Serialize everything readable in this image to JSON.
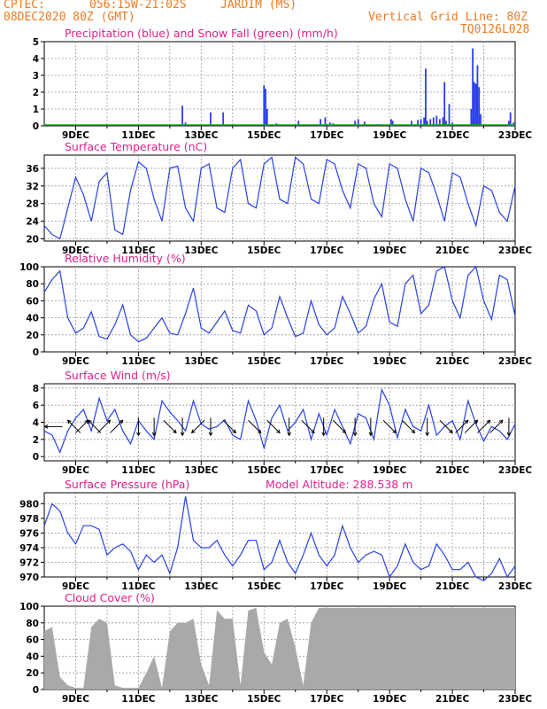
{
  "header": {
    "org": "CPTEC:",
    "coords": "056:15W-21:02S",
    "location": "JARDIM (MS)",
    "date": "08DEC2020 80Z (GMT)",
    "grid_note": "Vertical Grid Line: 80Z",
    "code": "TQ0126L028"
  },
  "colors": {
    "header": "#ee7a22",
    "title": "#e0208c",
    "line": "#2840e8",
    "snow": "#18a018",
    "cloud": "#a9a9a9",
    "grid": "#9a9a9a"
  },
  "x_axis": {
    "labels": [
      "9DEC",
      "11DEC",
      "13DEC",
      "15DEC",
      "17DEC",
      "19DEC",
      "21DEC",
      "23DEC"
    ]
  },
  "chart_data": [
    {
      "type": "bar",
      "title": "Precipitation (blue) and Snow Fall (green) (mm/h)",
      "ylim": [
        0,
        5
      ],
      "yticks": [
        0,
        1,
        2,
        3,
        4,
        5
      ],
      "series": [
        {
          "name": "Precipitation",
          "color": "blue",
          "points": [
            [
              12.4,
              1.2
            ],
            [
              12.5,
              0.2
            ],
            [
              13.3,
              0.8
            ],
            [
              13.7,
              0.8
            ],
            [
              15.0,
              2.4
            ],
            [
              15.05,
              2.2
            ],
            [
              15.1,
              1.0
            ],
            [
              15.4,
              0.15
            ],
            [
              16.1,
              0.3
            ],
            [
              16.8,
              0.4
            ],
            [
              16.95,
              0.5
            ],
            [
              17.1,
              0.2
            ],
            [
              17.2,
              0.15
            ],
            [
              17.9,
              0.3
            ],
            [
              18.0,
              0.4
            ],
            [
              18.2,
              0.25
            ],
            [
              18.6,
              0.1
            ],
            [
              19.05,
              0.4
            ],
            [
              19.1,
              0.3
            ],
            [
              19.7,
              0.3
            ],
            [
              19.9,
              0.35
            ],
            [
              20.0,
              0.4
            ],
            [
              20.1,
              0.5
            ],
            [
              20.15,
              3.4
            ],
            [
              20.2,
              0.3
            ],
            [
              20.3,
              0.4
            ],
            [
              20.4,
              0.5
            ],
            [
              20.5,
              0.6
            ],
            [
              20.6,
              0.4
            ],
            [
              20.7,
              0.5
            ],
            [
              20.75,
              2.6
            ],
            [
              20.8,
              0.3
            ],
            [
              20.9,
              1.3
            ],
            [
              21.0,
              0.2
            ],
            [
              21.6,
              1.0
            ],
            [
              21.65,
              4.6
            ],
            [
              21.7,
              2.6
            ],
            [
              21.75,
              2.5
            ],
            [
              21.8,
              3.6
            ],
            [
              21.85,
              2.3
            ],
            [
              21.9,
              0.7
            ],
            [
              22.8,
              0.3
            ],
            [
              22.85,
              0.8
            ],
            [
              22.95,
              0.2
            ]
          ]
        },
        {
          "name": "Snow Fall",
          "color": "green",
          "points": []
        }
      ]
    },
    {
      "type": "line",
      "title": "Surface Temperature (nC)",
      "ylim": [
        19.5,
        39
      ],
      "yticks": [
        20,
        24,
        28,
        32,
        36
      ],
      "x": [
        8.0,
        8.25,
        8.5,
        8.75,
        9.0,
        9.25,
        9.5,
        9.75,
        10.0,
        10.25,
        10.5,
        10.75,
        11.0,
        11.25,
        11.5,
        11.75,
        12.0,
        12.25,
        12.5,
        12.75,
        13.0,
        13.25,
        13.5,
        13.75,
        14.0,
        14.25,
        14.5,
        14.75,
        15.0,
        15.25,
        15.5,
        15.75,
        16.0,
        16.25,
        16.5,
        16.75,
        17.0,
        17.25,
        17.5,
        17.75,
        18.0,
        18.25,
        18.5,
        18.75,
        19.0,
        19.25,
        19.5,
        19.75,
        20.0,
        20.25,
        20.5,
        20.75,
        21.0,
        21.25,
        21.5,
        21.75,
        22.0,
        22.25,
        22.5,
        22.75,
        23.0
      ],
      "y": [
        23,
        21,
        20,
        27,
        34,
        30,
        24,
        33,
        35,
        22,
        21,
        31,
        37.5,
        36,
        29,
        24,
        36,
        36.5,
        27,
        24,
        36,
        37,
        27,
        26,
        36,
        38,
        28,
        27,
        37,
        38.5,
        29,
        28,
        38.5,
        37,
        29,
        28,
        38,
        37,
        31,
        27,
        37,
        36,
        28,
        25,
        37,
        36,
        29,
        24,
        36,
        35,
        30,
        24,
        35,
        34,
        28,
        23,
        32,
        31,
        26,
        24,
        32
      ]
    },
    {
      "type": "line",
      "title": "Relative Humidity (%)",
      "ylim": [
        0,
        100
      ],
      "yticks": [
        0,
        20,
        40,
        60,
        80,
        100
      ],
      "x": [
        8.0,
        8.25,
        8.5,
        8.75,
        9.0,
        9.25,
        9.5,
        9.75,
        10.0,
        10.25,
        10.5,
        10.75,
        11.0,
        11.25,
        11.5,
        11.75,
        12.0,
        12.25,
        12.5,
        12.75,
        13.0,
        13.25,
        13.5,
        13.75,
        14.0,
        14.25,
        14.5,
        14.75,
        15.0,
        15.25,
        15.5,
        15.75,
        16.0,
        16.25,
        16.5,
        16.75,
        17.0,
        17.25,
        17.5,
        17.75,
        18.0,
        18.25,
        18.5,
        18.75,
        19.0,
        19.25,
        19.5,
        19.75,
        20.0,
        20.25,
        20.5,
        20.75,
        21.0,
        21.25,
        21.5,
        21.75,
        22.0,
        22.25,
        22.5,
        22.75,
        23.0
      ],
      "y": [
        70,
        85,
        95,
        40,
        22,
        28,
        47,
        18,
        15,
        32,
        55,
        20,
        12,
        16,
        28,
        40,
        22,
        20,
        45,
        75,
        28,
        22,
        35,
        48,
        25,
        22,
        55,
        48,
        20,
        28,
        65,
        40,
        18,
        22,
        60,
        32,
        20,
        28,
        65,
        45,
        22,
        30,
        62,
        80,
        35,
        30,
        80,
        90,
        45,
        55,
        95,
        100,
        60,
        40,
        90,
        100,
        60,
        38,
        90,
        85,
        42
      ]
    },
    {
      "type": "line",
      "title": "Surface Wind (m/s)",
      "ylim": [
        -0.5,
        8.5
      ],
      "yticks": [
        0,
        2,
        4,
        6,
        8
      ],
      "x": [
        8.0,
        8.25,
        8.5,
        8.75,
        9.0,
        9.25,
        9.5,
        9.75,
        10.0,
        10.25,
        10.5,
        10.75,
        11.0,
        11.25,
        11.5,
        11.75,
        12.0,
        12.25,
        12.5,
        12.75,
        13.0,
        13.25,
        13.5,
        13.75,
        14.0,
        14.25,
        14.5,
        14.75,
        15.0,
        15.25,
        15.5,
        15.75,
        16.0,
        16.25,
        16.5,
        16.75,
        17.0,
        17.25,
        17.5,
        17.75,
        18.0,
        18.25,
        18.5,
        18.75,
        19.0,
        19.25,
        19.5,
        19.75,
        20.0,
        20.25,
        20.5,
        20.75,
        21.0,
        21.25,
        21.5,
        21.75,
        22.0,
        22.25,
        22.5,
        22.75,
        23.0
      ],
      "y": [
        3,
        2.5,
        0.5,
        3,
        4.5,
        5.5,
        3,
        6.8,
        4.2,
        5.5,
        3,
        1.5,
        4.2,
        3,
        2,
        6.5,
        5.2,
        4.2,
        3,
        6.5,
        3.8,
        3.2,
        3.5,
        4.3,
        2.5,
        2,
        6.5,
        4.2,
        1,
        4.5,
        6,
        3,
        4,
        5.5,
        2,
        5,
        2.5,
        5.5,
        3.5,
        1.5,
        5,
        4.5,
        2,
        7.8,
        6,
        2.2,
        5.5,
        3.5,
        3,
        6,
        2.5,
        3.5,
        4.2,
        2,
        6.5,
        3.8,
        1.8,
        3.5,
        3,
        2,
        3.8
      ],
      "arrows": [
        [
          8.3,
          "W"
        ],
        [
          8.95,
          "NW"
        ],
        [
          9.2,
          "NE"
        ],
        [
          9.6,
          "NW"
        ],
        [
          9.9,
          "NE"
        ],
        [
          10.3,
          "NE"
        ],
        [
          11.0,
          "S"
        ],
        [
          11.5,
          "S"
        ],
        [
          12.0,
          "SE"
        ],
        [
          12.4,
          "S"
        ],
        [
          12.9,
          "SW"
        ],
        [
          13.3,
          "S"
        ],
        [
          13.9,
          "SE"
        ],
        [
          14.7,
          "SE"
        ],
        [
          15.3,
          "SE"
        ],
        [
          15.8,
          "S"
        ],
        [
          16.4,
          "SE"
        ],
        [
          16.9,
          "S"
        ],
        [
          17.4,
          "SE"
        ],
        [
          17.9,
          "S"
        ],
        [
          18.4,
          "S"
        ],
        [
          19.0,
          "SE"
        ],
        [
          19.6,
          "SE"
        ],
        [
          20.2,
          "S"
        ],
        [
          20.8,
          "SE"
        ],
        [
          21.3,
          "NE"
        ],
        [
          21.6,
          "NE"
        ],
        [
          22.0,
          "NE"
        ],
        [
          22.4,
          "NE"
        ],
        [
          22.8,
          "S"
        ]
      ]
    },
    {
      "type": "line",
      "title": "Surface Pressure (hPa)",
      "subtitle": "Model Altitude: 288.538 m",
      "ylim": [
        970,
        981.5
      ],
      "yticks": [
        970,
        972,
        974,
        976,
        978,
        980
      ],
      "x": [
        8.0,
        8.25,
        8.5,
        8.75,
        9.0,
        9.25,
        9.5,
        9.75,
        10.0,
        10.25,
        10.5,
        10.75,
        11.0,
        11.25,
        11.5,
        11.75,
        12.0,
        12.25,
        12.5,
        12.75,
        13.0,
        13.25,
        13.5,
        13.75,
        14.0,
        14.25,
        14.5,
        14.75,
        15.0,
        15.25,
        15.5,
        15.75,
        16.0,
        16.25,
        16.5,
        16.75,
        17.0,
        17.25,
        17.5,
        17.75,
        18.0,
        18.25,
        18.5,
        18.75,
        19.0,
        19.25,
        19.5,
        19.75,
        20.0,
        20.25,
        20.5,
        20.75,
        21.0,
        21.25,
        21.5,
        21.75,
        22.0,
        22.25,
        22.5,
        22.75,
        23.0
      ],
      "y": [
        977,
        980,
        979,
        976,
        974.5,
        977,
        977,
        976.5,
        973,
        974,
        974.5,
        973.5,
        971,
        973,
        972,
        973,
        970.5,
        974,
        981,
        975,
        974,
        974,
        975,
        973,
        971.5,
        973,
        975,
        975,
        971,
        972,
        975,
        972,
        970.5,
        973,
        976,
        973,
        971.5,
        973,
        977,
        974,
        972,
        973,
        973.5,
        973,
        970,
        971.5,
        974.5,
        972,
        971,
        971.5,
        974.5,
        973,
        971,
        971,
        972,
        970,
        969.5,
        970.5,
        972.5,
        970,
        971.5
      ]
    },
    {
      "type": "bar",
      "title": "Cloud Cover (%)",
      "ylim": [
        0,
        100
      ],
      "yticks": [
        0,
        20,
        40,
        60,
        80,
        100
      ],
      "x": [
        8.0,
        8.25,
        8.5,
        8.75,
        9.0,
        9.25,
        9.5,
        9.75,
        10.0,
        10.25,
        10.5,
        10.75,
        11.0,
        11.25,
        11.5,
        11.75,
        12.0,
        12.25,
        12.5,
        12.75,
        13.0,
        13.25,
        13.5,
        13.75,
        14.0,
        14.25,
        14.5,
        14.75,
        15.0,
        15.25,
        15.5,
        15.75,
        16.0,
        16.25,
        16.5,
        16.75,
        17.0,
        17.25,
        17.5,
        17.75,
        18.0,
        18.25,
        18.5,
        18.75,
        19.0,
        19.25,
        19.5,
        19.75,
        20.0,
        20.25,
        20.5,
        20.75,
        21.0,
        21.25,
        21.5,
        21.75,
        22.0,
        22.25,
        22.5,
        22.75,
        23.0
      ],
      "y": [
        70,
        75,
        15,
        5,
        2,
        2,
        75,
        85,
        80,
        5,
        2,
        2,
        2,
        20,
        40,
        2,
        70,
        80,
        80,
        85,
        30,
        5,
        95,
        85,
        85,
        5,
        95,
        98,
        45,
        30,
        80,
        85,
        50,
        5,
        80,
        98,
        98,
        98,
        98,
        98,
        98,
        98,
        98,
        98,
        98,
        98,
        98,
        98,
        98,
        98,
        98,
        98,
        98,
        98,
        98,
        98,
        98,
        98,
        98,
        98,
        98
      ]
    }
  ]
}
